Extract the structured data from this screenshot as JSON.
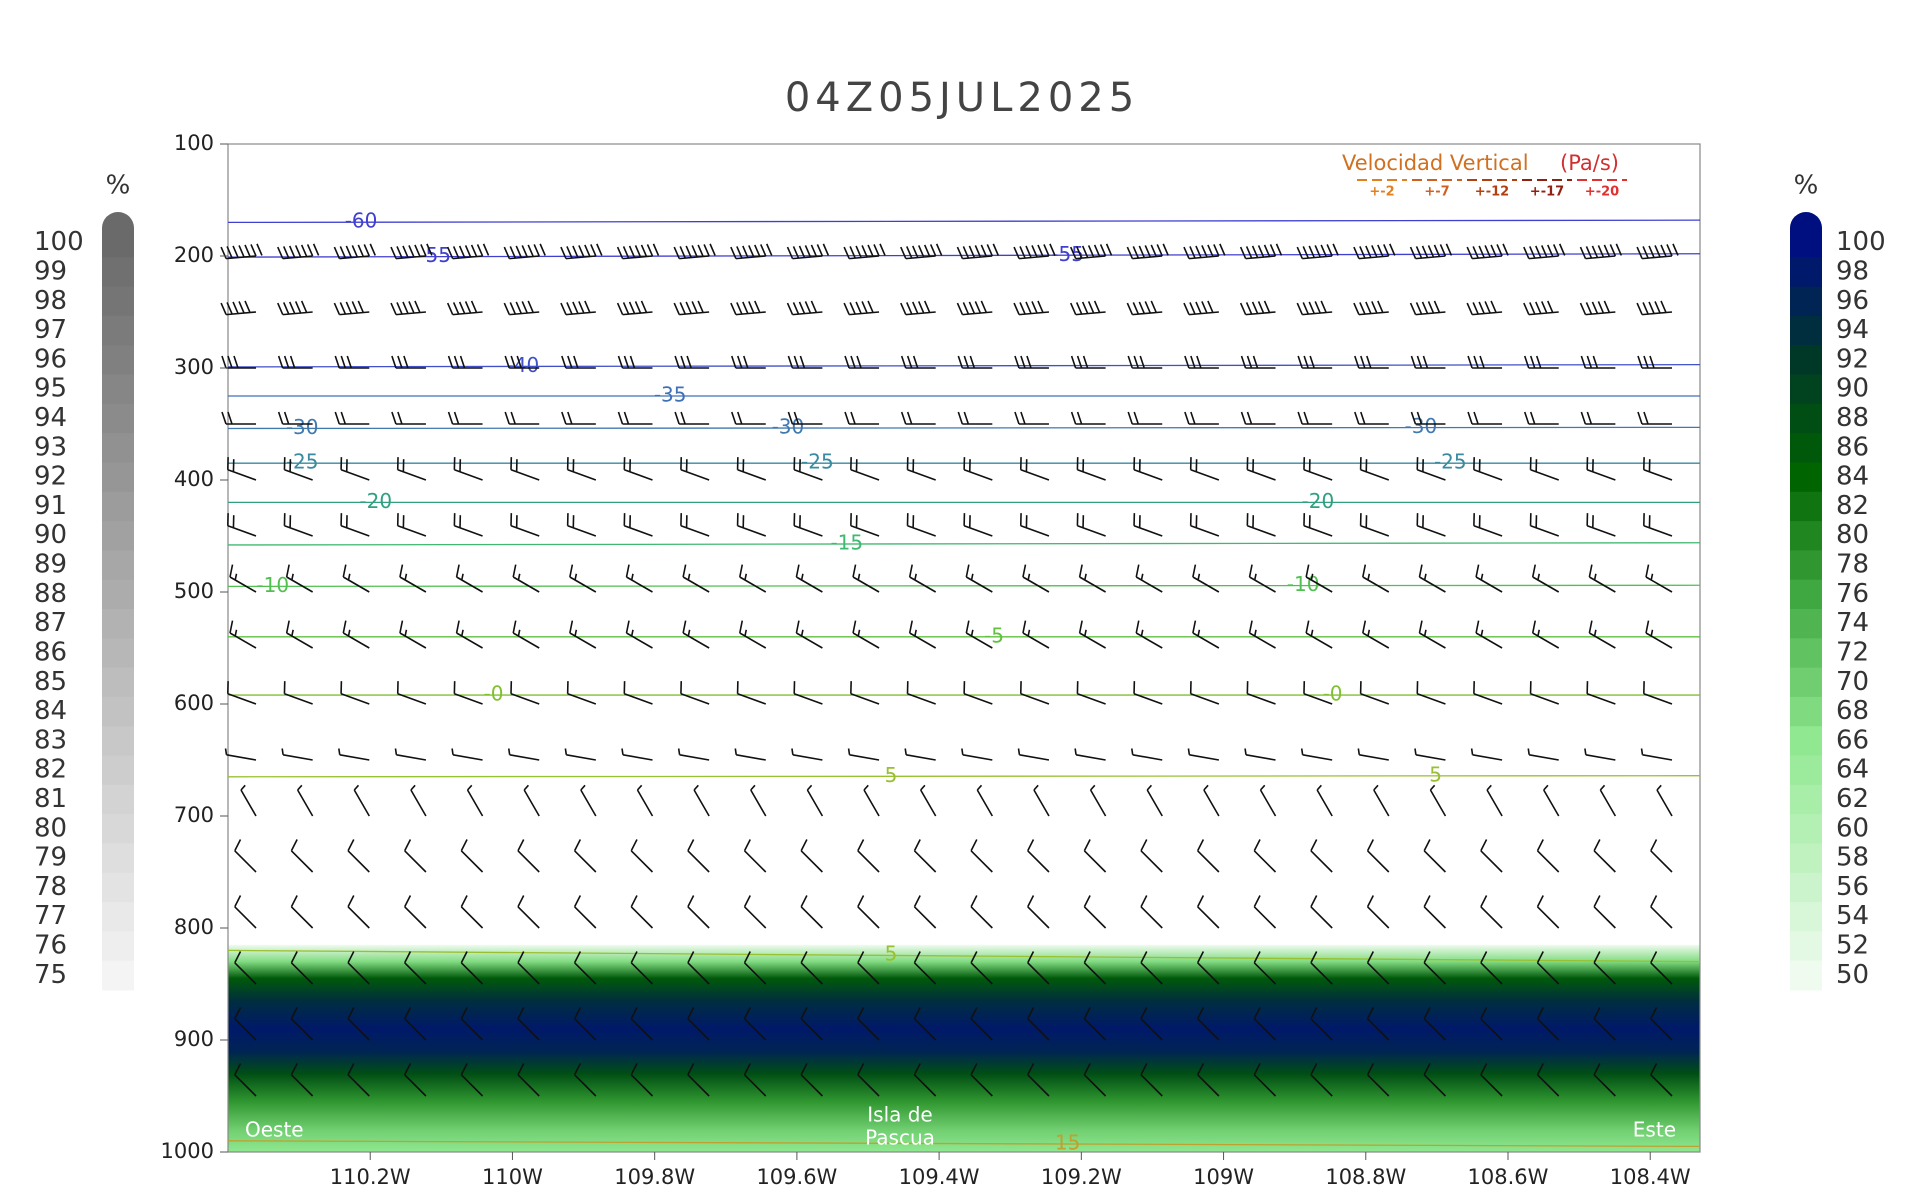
{
  "chart_data": {
    "type": "cross-section",
    "title": "04Z05JUL2025",
    "xlim": [
      -110.4,
      -108.33
    ],
    "xticks": [
      {
        "value": -110.2,
        "label": "110.2W"
      },
      {
        "value": -110,
        "label": "110W"
      },
      {
        "value": -109.8,
        "label": "109.8W"
      },
      {
        "value": -109.6,
        "label": "109.6W"
      },
      {
        "value": -109.4,
        "label": "109.4W"
      },
      {
        "value": -109.2,
        "label": "109.2W"
      },
      {
        "value": -109,
        "label": "109W"
      },
      {
        "value": -108.8,
        "label": "108.8W"
      },
      {
        "value": -108.6,
        "label": "108.6W"
      },
      {
        "value": -108.4,
        "label": "108.4W"
      }
    ],
    "ylim": [
      1000,
      100
    ],
    "yticks": [
      100,
      200,
      300,
      400,
      500,
      600,
      700,
      800,
      900,
      1000
    ],
    "contours": [
      {
        "level": -60,
        "label": "-60",
        "p": [
          170,
          168
        ],
        "color": "#4040d0"
      },
      {
        "level": -55,
        "label": "-55",
        "p": [
          201,
          198
        ],
        "color": "#4040d0"
      },
      {
        "level": -40,
        "label": "-40",
        "p": [
          299,
          297
        ],
        "color": "#4050c8"
      },
      {
        "level": -35,
        "label": "-35",
        "p": [
          325,
          325
        ],
        "color": "#4070b8"
      },
      {
        "level": -30,
        "label": "-30",
        "p": [
          354,
          353
        ],
        "color": "#4078b0"
      },
      {
        "level": -25,
        "label": "-25",
        "p": [
          385,
          385
        ],
        "color": "#3a8aa0"
      },
      {
        "level": -20,
        "label": "-20",
        "p": [
          420,
          420
        ],
        "color": "#30a080"
      },
      {
        "level": -15,
        "label": "-15",
        "p": [
          458,
          456
        ],
        "color": "#40b870"
      },
      {
        "level": -10,
        "label": "-10",
        "p": [
          495,
          494
        ],
        "color": "#50c050"
      },
      {
        "level": -5,
        "label": "-5",
        "p": [
          540,
          540
        ],
        "color": "#60c040"
      },
      {
        "level": 0,
        "label": "-0",
        "p": [
          592,
          592
        ],
        "color": "#80c030"
      },
      {
        "level": 5,
        "label": "5",
        "p": [
          665,
          664
        ],
        "color": "#99c030"
      },
      {
        "level": 5,
        "label": "5",
        "p": [
          820,
          830
        ],
        "color": "#99c030"
      },
      {
        "level": 15,
        "label": "15",
        "p": [
          990,
          995
        ],
        "color": "#c0a030"
      }
    ],
    "rh_profile": {
      "pressure": [
        815,
        830,
        845,
        865,
        890,
        910,
        930,
        955,
        980,
        1000
      ],
      "values": [
        50,
        68,
        86,
        94,
        98,
        96,
        88,
        78,
        70,
        66
      ]
    },
    "wind": {
      "pressure": [
        200,
        250,
        300,
        350,
        400,
        450,
        500,
        550,
        600,
        650,
        700,
        750,
        800,
        850,
        900,
        950
      ],
      "direction": [
        265,
        265,
        270,
        270,
        290,
        290,
        300,
        300,
        290,
        280,
        330,
        315,
        315,
        315,
        315,
        315
      ],
      "speed": [
        70,
        50,
        30,
        20,
        20,
        20,
        15,
        15,
        10,
        5,
        5,
        10,
        10,
        10,
        10,
        10
      ]
    },
    "colorbar_left": {
      "label": "%",
      "ticks": [
        100,
        99,
        98,
        97,
        96,
        95,
        94,
        93,
        92,
        91,
        90,
        89,
        88,
        87,
        86,
        85,
        84,
        83,
        82,
        81,
        80,
        79,
        78,
        77,
        76,
        75
      ],
      "colormap": [
        [
          75,
          "#f4f4f4"
        ],
        [
          100,
          "#6a6a6a"
        ]
      ]
    },
    "colorbar_right": {
      "label": "%",
      "ticks": [
        100,
        98,
        96,
        94,
        92,
        90,
        88,
        86,
        84,
        82,
        80,
        78,
        76,
        74,
        72,
        70,
        68,
        66,
        64,
        62,
        60,
        58,
        56,
        54,
        52,
        50
      ],
      "colormap": [
        [
          50,
          "#f0fbf0"
        ],
        [
          66,
          "#90e890"
        ],
        [
          76,
          "#40a840"
        ],
        [
          84,
          "#006400"
        ],
        [
          92,
          "#003828"
        ],
        [
          100,
          "#000f80"
        ]
      ]
    },
    "legend": {
      "title": "Velocidad Vertical",
      "unit": "(Pa/s)",
      "items": [
        {
          "label": "+-2",
          "color": "#e08020"
        },
        {
          "label": "+-7",
          "color": "#d06020"
        },
        {
          "label": "+-12",
          "color": "#b04010"
        },
        {
          "label": "+-17",
          "color": "#902010"
        },
        {
          "label": "+-20",
          "color": "#e03030"
        }
      ]
    },
    "annotations": {
      "west": "Oeste",
      "island": [
        "Isla de",
        "Pascua"
      ],
      "east": "Este"
    }
  }
}
